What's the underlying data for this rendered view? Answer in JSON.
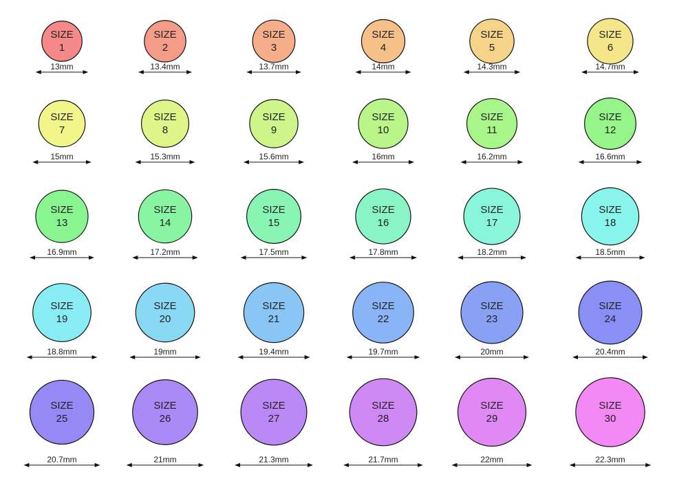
{
  "size_word": "SIZE",
  "rings": [
    {
      "number": 1,
      "diameter": 13,
      "diameter_label": "13mm"
    },
    {
      "number": 2,
      "diameter": 13.4,
      "diameter_label": "13.4mm"
    },
    {
      "number": 3,
      "diameter": 13.7,
      "diameter_label": "13.7mm"
    },
    {
      "number": 4,
      "diameter": 14,
      "diameter_label": "14mm"
    },
    {
      "number": 5,
      "diameter": 14.3,
      "diameter_label": "14.3mm"
    },
    {
      "number": 6,
      "diameter": 14.7,
      "diameter_label": "14.7mm"
    },
    {
      "number": 7,
      "diameter": 15,
      "diameter_label": "15mm"
    },
    {
      "number": 8,
      "diameter": 15.3,
      "diameter_label": "15.3mm"
    },
    {
      "number": 9,
      "diameter": 15.6,
      "diameter_label": "15.6mm"
    },
    {
      "number": 10,
      "diameter": 16,
      "diameter_label": "16mm"
    },
    {
      "number": 11,
      "diameter": 16.2,
      "diameter_label": "16.2mm"
    },
    {
      "number": 12,
      "diameter": 16.6,
      "diameter_label": "16.6mm"
    },
    {
      "number": 13,
      "diameter": 16.9,
      "diameter_label": "16.9mm"
    },
    {
      "number": 14,
      "diameter": 17.2,
      "diameter_label": "17.2mm"
    },
    {
      "number": 15,
      "diameter": 17.5,
      "diameter_label": "17.5mm"
    },
    {
      "number": 16,
      "diameter": 17.8,
      "diameter_label": "17.8mm"
    },
    {
      "number": 17,
      "diameter": 18.2,
      "diameter_label": "18.2mm"
    },
    {
      "number": 18,
      "diameter": 18.5,
      "diameter_label": "18.5mm"
    },
    {
      "number": 19,
      "diameter": 18.8,
      "diameter_label": "18.8mm"
    },
    {
      "number": 20,
      "diameter": 19,
      "diameter_label": "19mm"
    },
    {
      "number": 21,
      "diameter": 19.4,
      "diameter_label": "19.4mm"
    },
    {
      "number": 22,
      "diameter": 19.7,
      "diameter_label": "19.7mm"
    },
    {
      "number": 23,
      "diameter": 20,
      "diameter_label": "20mm"
    },
    {
      "number": 24,
      "diameter": 20.4,
      "diameter_label": "20.4mm"
    },
    {
      "number": 25,
      "diameter": 20.7,
      "diameter_label": "20.7mm"
    },
    {
      "number": 26,
      "diameter": 21,
      "diameter_label": "21mm"
    },
    {
      "number": 27,
      "diameter": 21.3,
      "diameter_label": "21.3mm"
    },
    {
      "number": 28,
      "diameter": 21.7,
      "diameter_label": "21.7mm"
    },
    {
      "number": 29,
      "diameter": 22,
      "diameter_label": "22mm"
    },
    {
      "number": 30,
      "diameter": 22.3,
      "diameter_label": "22.3mm"
    }
  ]
}
